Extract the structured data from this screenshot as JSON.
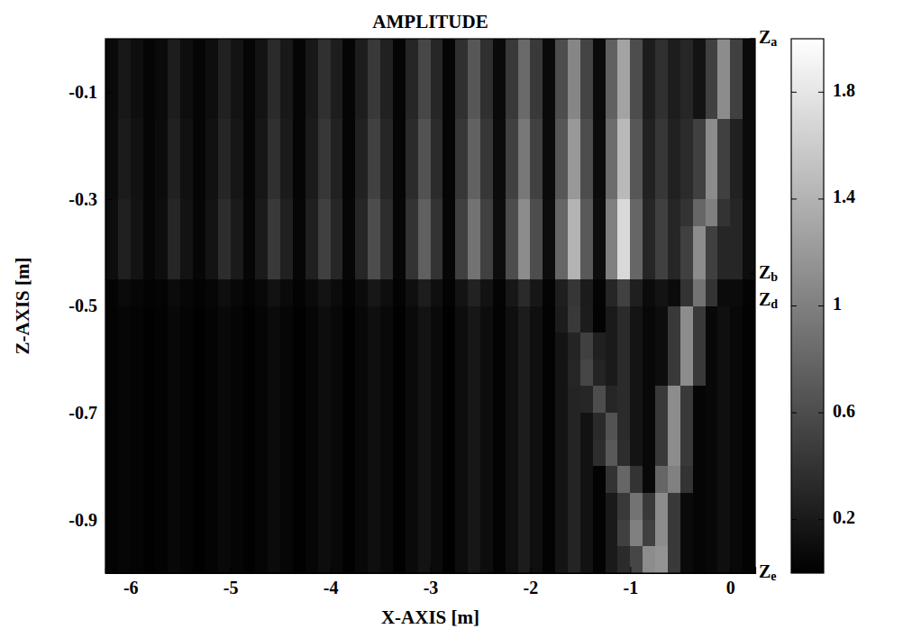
{
  "chart_data": {
    "type": "heatmap",
    "title": "AMPLITUDE",
    "x_label": "X-AXIS [m]",
    "y_label": "Z-AXIS [m]",
    "xlim": [
      -6.25,
      0.25
    ],
    "ylim": [
      -1,
      0
    ],
    "xticks": [
      -6,
      -5,
      -4,
      -3,
      -2,
      -1,
      0
    ],
    "yticks": [
      -0.1,
      -0.3,
      -0.5,
      -0.7,
      -0.9
    ],
    "x": [
      -6.1875,
      -6.0625,
      -5.9375,
      -5.8125,
      -5.6875,
      -5.5625,
      -5.4375,
      -5.3125,
      -5.1875,
      -5.0625,
      -4.9375,
      -4.8125,
      -4.6875,
      -4.5625,
      -4.4375,
      -4.3125,
      -4.1875,
      -4.0625,
      -3.9375,
      -3.8125,
      -3.6875,
      -3.5625,
      -3.4375,
      -3.3125,
      -3.1875,
      -3.0625,
      -2.9375,
      -2.8125,
      -2.6875,
      -2.5625,
      -2.4375,
      -2.3125,
      -2.1875,
      -2.0625,
      -1.9375,
      -1.8125,
      -1.6875,
      -1.5625,
      -1.4375,
      -1.3125,
      -1.1875,
      -1.0625,
      -0.9375,
      -0.8125,
      -0.6875,
      -0.5625,
      -0.4375,
      -0.3125,
      -0.1875,
      -0.0625,
      0.0625,
      0.1875
    ],
    "y": [
      -0.025,
      -0.075,
      -0.125,
      -0.175,
      -0.225,
      -0.275,
      -0.325,
      -0.375,
      -0.425,
      -0.475,
      -0.525,
      -0.575,
      -0.625,
      -0.675,
      -0.725,
      -0.775,
      -0.825,
      -0.875,
      -0.925,
      -0.975
    ],
    "values": [
      [
        0.08,
        0.19,
        0.11,
        0.04,
        0.08,
        0.23,
        0.11,
        0.04,
        0.11,
        0.26,
        0.15,
        0.04,
        0.15,
        0.34,
        0.19,
        0.04,
        0.19,
        0.38,
        0.23,
        0.04,
        0.23,
        0.45,
        0.26,
        0.04,
        0.3,
        0.56,
        0.3,
        0.04,
        0.38,
        0.68,
        0.38,
        0.08,
        0.45,
        0.83,
        0.45,
        0.08,
        0.6,
        1.05,
        0.53,
        0.08,
        0.75,
        1.28,
        0.6,
        0.23,
        0.38,
        0.23,
        0.3,
        0.15,
        0.5,
        1.1,
        0.5,
        0.08
      ],
      [
        0.08,
        0.19,
        0.11,
        0.04,
        0.08,
        0.23,
        0.11,
        0.04,
        0.11,
        0.26,
        0.15,
        0.04,
        0.15,
        0.34,
        0.19,
        0.04,
        0.19,
        0.38,
        0.23,
        0.04,
        0.23,
        0.45,
        0.26,
        0.04,
        0.3,
        0.56,
        0.3,
        0.04,
        0.38,
        0.68,
        0.38,
        0.08,
        0.45,
        0.83,
        0.45,
        0.08,
        0.6,
        1.05,
        0.53,
        0.08,
        0.75,
        1.28,
        0.6,
        0.23,
        0.38,
        0.23,
        0.3,
        0.15,
        0.5,
        1.1,
        0.5,
        0.08
      ],
      [
        0.08,
        0.19,
        0.11,
        0.04,
        0.08,
        0.23,
        0.11,
        0.04,
        0.11,
        0.26,
        0.15,
        0.04,
        0.15,
        0.34,
        0.19,
        0.04,
        0.19,
        0.38,
        0.23,
        0.04,
        0.23,
        0.45,
        0.26,
        0.04,
        0.3,
        0.56,
        0.3,
        0.04,
        0.38,
        0.68,
        0.38,
        0.08,
        0.45,
        0.83,
        0.45,
        0.08,
        0.6,
        1.05,
        0.53,
        0.08,
        0.75,
        1.28,
        0.6,
        0.23,
        0.38,
        0.23,
        0.3,
        0.15,
        0.5,
        1.1,
        0.5,
        0.08
      ],
      [
        0.09,
        0.21,
        0.13,
        0.04,
        0.09,
        0.26,
        0.13,
        0.04,
        0.13,
        0.3,
        0.17,
        0.04,
        0.17,
        0.38,
        0.21,
        0.04,
        0.21,
        0.43,
        0.26,
        0.04,
        0.26,
        0.51,
        0.3,
        0.04,
        0.34,
        0.64,
        0.34,
        0.04,
        0.43,
        0.77,
        0.43,
        0.09,
        0.51,
        0.94,
        0.51,
        0.09,
        0.68,
        1.19,
        0.6,
        0.09,
        0.85,
        1.45,
        0.68,
        0.26,
        0.43,
        0.26,
        0.34,
        0.5,
        1.1,
        0.5,
        0.26,
        0.09
      ],
      [
        0.09,
        0.21,
        0.13,
        0.04,
        0.09,
        0.26,
        0.13,
        0.04,
        0.13,
        0.3,
        0.17,
        0.04,
        0.17,
        0.38,
        0.21,
        0.04,
        0.21,
        0.43,
        0.26,
        0.04,
        0.26,
        0.51,
        0.3,
        0.04,
        0.34,
        0.64,
        0.34,
        0.04,
        0.43,
        0.77,
        0.43,
        0.09,
        0.51,
        0.94,
        0.51,
        0.09,
        0.68,
        1.19,
        0.6,
        0.09,
        0.85,
        1.45,
        0.68,
        0.26,
        0.43,
        0.26,
        0.34,
        0.5,
        1.1,
        0.5,
        0.26,
        0.09
      ],
      [
        0.09,
        0.21,
        0.13,
        0.04,
        0.09,
        0.26,
        0.13,
        0.04,
        0.13,
        0.3,
        0.17,
        0.04,
        0.17,
        0.38,
        0.21,
        0.04,
        0.21,
        0.43,
        0.26,
        0.04,
        0.26,
        0.51,
        0.3,
        0.04,
        0.34,
        0.64,
        0.34,
        0.04,
        0.43,
        0.77,
        0.43,
        0.09,
        0.51,
        0.94,
        0.51,
        0.09,
        0.68,
        1.19,
        0.6,
        0.09,
        0.85,
        1.45,
        0.68,
        0.26,
        0.43,
        0.26,
        0.34,
        0.5,
        1.1,
        0.5,
        0.26,
        0.09
      ],
      [
        0.1,
        0.25,
        0.15,
        0.05,
        0.1,
        0.3,
        0.15,
        0.05,
        0.15,
        0.35,
        0.2,
        0.05,
        0.2,
        0.45,
        0.25,
        0.05,
        0.25,
        0.5,
        0.3,
        0.05,
        0.3,
        0.6,
        0.35,
        0.05,
        0.4,
        0.75,
        0.4,
        0.05,
        0.5,
        0.9,
        0.5,
        0.1,
        0.6,
        1.1,
        0.6,
        0.1,
        0.8,
        1.4,
        0.7,
        0.1,
        1.0,
        1.7,
        0.8,
        0.3,
        0.5,
        0.3,
        0.4,
        0.8,
        1.0,
        0.4,
        0.3,
        0.1
      ],
      [
        0.1,
        0.25,
        0.15,
        0.05,
        0.1,
        0.3,
        0.15,
        0.05,
        0.15,
        0.35,
        0.2,
        0.05,
        0.2,
        0.45,
        0.25,
        0.05,
        0.25,
        0.5,
        0.3,
        0.05,
        0.3,
        0.6,
        0.35,
        0.05,
        0.4,
        0.75,
        0.4,
        0.05,
        0.5,
        0.9,
        0.5,
        0.1,
        0.6,
        1.1,
        0.6,
        0.1,
        0.8,
        1.4,
        0.7,
        0.1,
        1.0,
        1.7,
        0.8,
        0.3,
        0.5,
        0.3,
        0.5,
        1.1,
        0.5,
        0.3,
        0.3,
        0.1
      ],
      [
        0.1,
        0.25,
        0.15,
        0.05,
        0.1,
        0.3,
        0.15,
        0.05,
        0.15,
        0.35,
        0.2,
        0.05,
        0.2,
        0.45,
        0.25,
        0.05,
        0.25,
        0.5,
        0.3,
        0.05,
        0.3,
        0.6,
        0.35,
        0.05,
        0.4,
        0.75,
        0.4,
        0.05,
        0.5,
        0.9,
        0.5,
        0.1,
        0.6,
        1.1,
        0.6,
        0.1,
        0.8,
        1.4,
        0.7,
        0.1,
        1.0,
        1.7,
        0.8,
        0.3,
        0.5,
        0.3,
        0.5,
        1.1,
        0.5,
        0.3,
        0.3,
        0.1
      ],
      [
        0.03,
        0.08,
        0.05,
        0.02,
        0.03,
        0.09,
        0.05,
        0.02,
        0.05,
        0.11,
        0.06,
        0.02,
        0.06,
        0.14,
        0.08,
        0.02,
        0.08,
        0.15,
        0.09,
        0.02,
        0.09,
        0.18,
        0.11,
        0.02,
        0.12,
        0.23,
        0.12,
        0.02,
        0.15,
        0.27,
        0.15,
        0.03,
        0.18,
        0.33,
        0.18,
        0.03,
        0.24,
        0.42,
        0.21,
        0.03,
        0.3,
        0.51,
        0.24,
        0.09,
        0.15,
        0.09,
        0.4,
        0.9,
        0.4,
        0.09,
        0.09,
        0.03
      ],
      [
        0.02,
        0.05,
        0.03,
        0.01,
        0.02,
        0.06,
        0.03,
        0.01,
        0.03,
        0.07,
        0.04,
        0.01,
        0.04,
        0.09,
        0.05,
        0.01,
        0.05,
        0.1,
        0.06,
        0.01,
        0.06,
        0.12,
        0.07,
        0.01,
        0.08,
        0.15,
        0.08,
        0.01,
        0.1,
        0.18,
        0.1,
        0.02,
        0.12,
        0.22,
        0.12,
        0.02,
        0.22,
        0.45,
        0.22,
        0.02,
        0.2,
        0.34,
        0.16,
        0.06,
        0.1,
        0.45,
        1.1,
        0.45,
        0.06,
        0.12,
        0.06,
        0.02
      ],
      [
        0.02,
        0.05,
        0.03,
        0.01,
        0.02,
        0.06,
        0.03,
        0.01,
        0.03,
        0.07,
        0.04,
        0.01,
        0.04,
        0.09,
        0.05,
        0.01,
        0.05,
        0.1,
        0.06,
        0.01,
        0.06,
        0.12,
        0.07,
        0.01,
        0.08,
        0.15,
        0.08,
        0.01,
        0.1,
        0.18,
        0.1,
        0.02,
        0.12,
        0.22,
        0.12,
        0.02,
        0.16,
        0.28,
        0.5,
        0.25,
        0.2,
        0.34,
        0.16,
        0.06,
        0.1,
        0.45,
        1.1,
        0.45,
        0.06,
        0.12,
        0.06,
        0.02
      ],
      [
        0.02,
        0.05,
        0.03,
        0.01,
        0.02,
        0.06,
        0.03,
        0.01,
        0.03,
        0.07,
        0.04,
        0.01,
        0.04,
        0.09,
        0.05,
        0.01,
        0.05,
        0.1,
        0.06,
        0.01,
        0.06,
        0.12,
        0.07,
        0.01,
        0.08,
        0.15,
        0.08,
        0.01,
        0.1,
        0.18,
        0.1,
        0.02,
        0.12,
        0.22,
        0.12,
        0.02,
        0.16,
        0.3,
        0.55,
        0.28,
        0.2,
        0.34,
        0.16,
        0.06,
        0.1,
        0.45,
        1.1,
        0.45,
        0.06,
        0.12,
        0.06,
        0.02
      ],
      [
        0.02,
        0.05,
        0.03,
        0.01,
        0.02,
        0.06,
        0.03,
        0.01,
        0.03,
        0.07,
        0.04,
        0.01,
        0.04,
        0.09,
        0.05,
        0.01,
        0.05,
        0.1,
        0.06,
        0.01,
        0.06,
        0.12,
        0.07,
        0.01,
        0.08,
        0.15,
        0.08,
        0.01,
        0.1,
        0.18,
        0.1,
        0.02,
        0.12,
        0.22,
        0.12,
        0.02,
        0.16,
        0.28,
        0.3,
        0.6,
        0.3,
        0.34,
        0.16,
        0.06,
        0.45,
        1.1,
        0.45,
        0.04,
        0.06,
        0.12,
        0.06,
        0.02
      ],
      [
        0.02,
        0.05,
        0.03,
        0.01,
        0.02,
        0.06,
        0.03,
        0.01,
        0.03,
        0.07,
        0.04,
        0.01,
        0.04,
        0.09,
        0.05,
        0.01,
        0.05,
        0.1,
        0.06,
        0.01,
        0.06,
        0.12,
        0.07,
        0.01,
        0.08,
        0.15,
        0.08,
        0.01,
        0.1,
        0.18,
        0.1,
        0.02,
        0.12,
        0.22,
        0.12,
        0.02,
        0.16,
        0.28,
        0.14,
        0.33,
        0.65,
        0.34,
        0.16,
        0.06,
        0.45,
        1.1,
        0.45,
        0.04,
        0.06,
        0.12,
        0.06,
        0.02
      ],
      [
        0.02,
        0.05,
        0.03,
        0.01,
        0.02,
        0.06,
        0.03,
        0.01,
        0.03,
        0.07,
        0.04,
        0.01,
        0.04,
        0.09,
        0.05,
        0.01,
        0.05,
        0.1,
        0.06,
        0.01,
        0.06,
        0.12,
        0.07,
        0.01,
        0.08,
        0.15,
        0.08,
        0.01,
        0.1,
        0.18,
        0.1,
        0.02,
        0.12,
        0.22,
        0.12,
        0.02,
        0.16,
        0.28,
        0.14,
        0.35,
        0.7,
        0.35,
        0.16,
        0.06,
        0.45,
        1.1,
        0.45,
        0.04,
        0.06,
        0.12,
        0.06,
        0.02
      ],
      [
        0.02,
        0.05,
        0.03,
        0.01,
        0.02,
        0.06,
        0.03,
        0.01,
        0.03,
        0.07,
        0.04,
        0.01,
        0.04,
        0.09,
        0.05,
        0.01,
        0.05,
        0.1,
        0.06,
        0.01,
        0.06,
        0.12,
        0.07,
        0.01,
        0.08,
        0.15,
        0.08,
        0.01,
        0.1,
        0.18,
        0.1,
        0.02,
        0.12,
        0.22,
        0.12,
        0.02,
        0.16,
        0.28,
        0.14,
        0.02,
        0.4,
        0.8,
        0.4,
        0.06,
        0.8,
        1.0,
        0.4,
        0.04,
        0.06,
        0.12,
        0.06,
        0.02
      ],
      [
        0.02,
        0.05,
        0.03,
        0.01,
        0.02,
        0.06,
        0.03,
        0.01,
        0.03,
        0.07,
        0.04,
        0.01,
        0.04,
        0.09,
        0.05,
        0.01,
        0.05,
        0.1,
        0.06,
        0.01,
        0.06,
        0.12,
        0.07,
        0.01,
        0.08,
        0.15,
        0.08,
        0.01,
        0.1,
        0.18,
        0.1,
        0.02,
        0.12,
        0.22,
        0.12,
        0.02,
        0.16,
        0.28,
        0.14,
        0.02,
        0.2,
        0.45,
        0.9,
        0.45,
        1.1,
        0.45,
        0.08,
        0.04,
        0.06,
        0.12,
        0.06,
        0.02
      ],
      [
        0.02,
        0.05,
        0.03,
        0.01,
        0.02,
        0.06,
        0.03,
        0.01,
        0.03,
        0.07,
        0.04,
        0.01,
        0.04,
        0.09,
        0.05,
        0.01,
        0.05,
        0.1,
        0.06,
        0.01,
        0.06,
        0.12,
        0.07,
        0.01,
        0.08,
        0.15,
        0.08,
        0.01,
        0.1,
        0.18,
        0.1,
        0.02,
        0.12,
        0.22,
        0.12,
        0.02,
        0.16,
        0.28,
        0.14,
        0.02,
        0.2,
        0.5,
        1.0,
        0.5,
        1.1,
        0.45,
        0.08,
        0.04,
        0.06,
        0.12,
        0.06,
        0.02
      ],
      [
        0.02,
        0.05,
        0.03,
        0.01,
        0.02,
        0.06,
        0.03,
        0.01,
        0.03,
        0.07,
        0.04,
        0.01,
        0.04,
        0.09,
        0.05,
        0.01,
        0.05,
        0.1,
        0.06,
        0.01,
        0.06,
        0.12,
        0.07,
        0.01,
        0.08,
        0.15,
        0.08,
        0.01,
        0.1,
        0.18,
        0.1,
        0.02,
        0.12,
        0.22,
        0.12,
        0.02,
        0.16,
        0.28,
        0.14,
        0.02,
        0.2,
        0.34,
        0.55,
        1.1,
        1.15,
        0.45,
        0.08,
        0.04,
        0.06,
        0.12,
        0.06,
        0.02
      ]
    ],
    "colorbar": {
      "range": [
        0,
        2
      ],
      "ticks": [
        0.2,
        0.6,
        1,
        1.4,
        1.8
      ]
    },
    "annotations": [
      {
        "label": "Za",
        "value": 0
      },
      {
        "label": "Zb",
        "value": -0.44
      },
      {
        "label": "Zd",
        "value": -0.49
      },
      {
        "label": "Ze",
        "value": -1
      }
    ]
  }
}
